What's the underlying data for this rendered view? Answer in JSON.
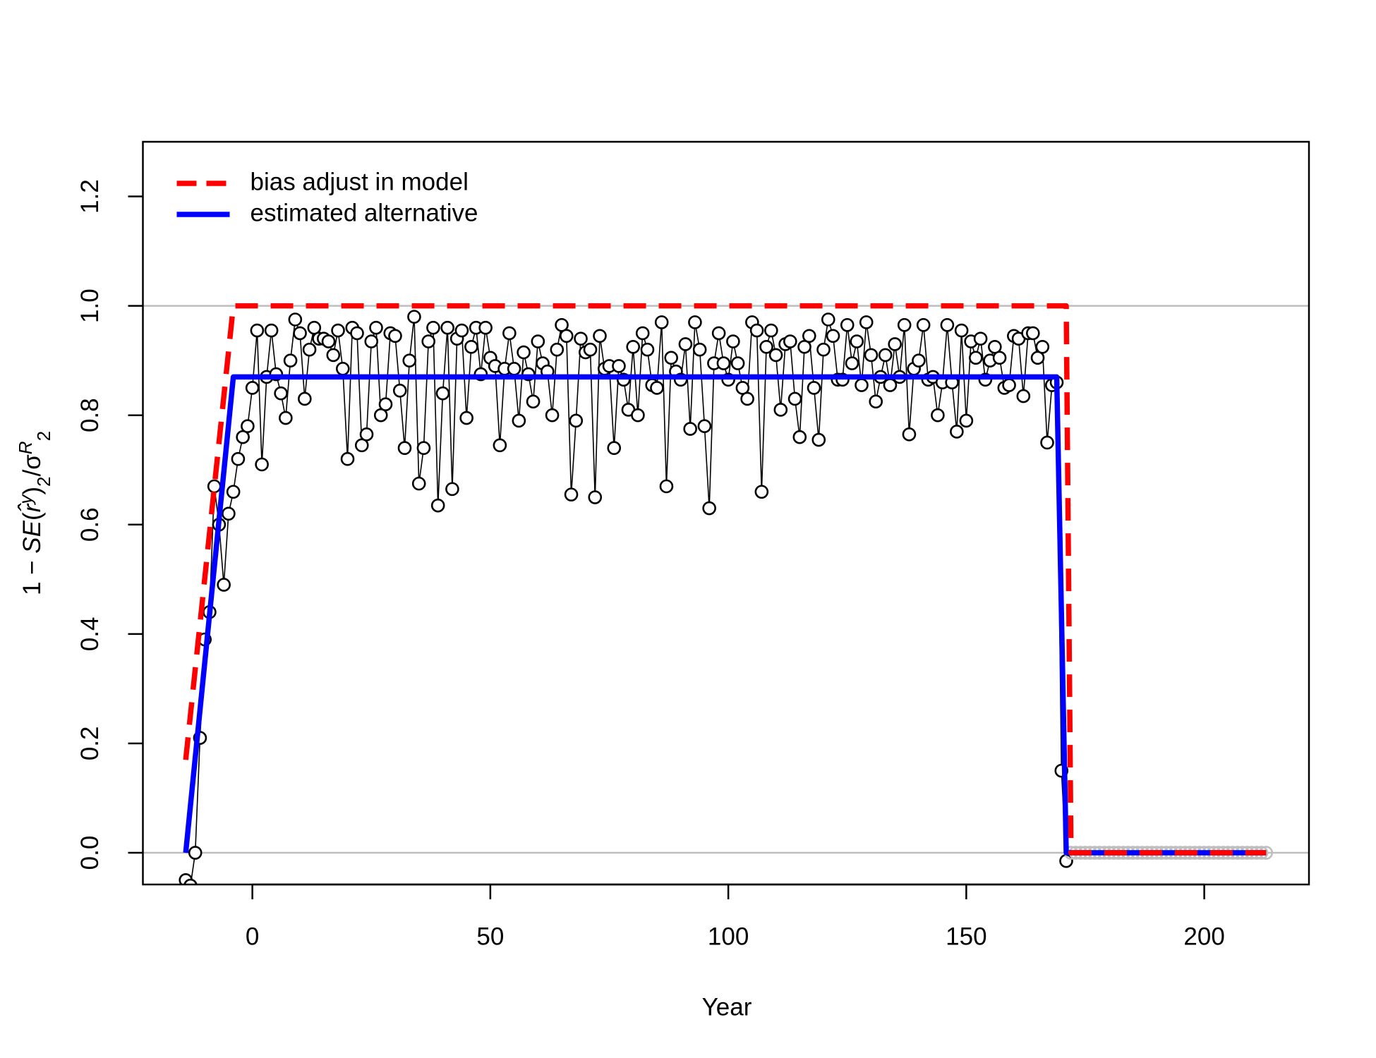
{
  "chart_data": {
    "type": "line",
    "xlabel": "Year",
    "ylabel_parts": [
      "1 − ",
      "SE",
      "(",
      "r̂",
      "y",
      ")",
      "2",
      "/",
      "σ",
      "R",
      "2"
    ],
    "xlim": [
      -23,
      222
    ],
    "ylim": [
      -0.058,
      1.3
    ],
    "xticks": [
      0,
      50,
      100,
      150,
      200
    ],
    "yticks": [
      {
        "value": 0,
        "label": "0.0"
      },
      {
        "value": 0.2,
        "label": "0.2"
      },
      {
        "value": 0.4,
        "label": "0.4"
      },
      {
        "value": 0.6,
        "label": "0.6"
      },
      {
        "value": 0.8,
        "label": "0.8"
      },
      {
        "value": 1,
        "label": "1.0"
      },
      {
        "value": 1.2,
        "label": "1.2"
      }
    ],
    "reference_lines": [
      0,
      1
    ],
    "reference_color": "#bebebe",
    "legend": "top-left",
    "series": [
      {
        "type": "scatter",
        "color": "#000000",
        "connect": true,
        "x": [
          -14,
          -13,
          -12,
          -11,
          -10,
          -9,
          -8,
          -7,
          -6,
          -5,
          -4,
          -3,
          -2,
          -1,
          0,
          1,
          2,
          3,
          4,
          5,
          6,
          7,
          8,
          9,
          10,
          11,
          12,
          13,
          14,
          15,
          16,
          17,
          18,
          19,
          20,
          21,
          22,
          23,
          24,
          25,
          26,
          27,
          28,
          29,
          30,
          31,
          32,
          33,
          34,
          35,
          36,
          37,
          38,
          39,
          40,
          41,
          42,
          43,
          44,
          45,
          46,
          47,
          48,
          49,
          50,
          51,
          52,
          53,
          54,
          55,
          56,
          57,
          58,
          59,
          60,
          61,
          62,
          63,
          64,
          65,
          66,
          67,
          68,
          69,
          70,
          71,
          72,
          73,
          74,
          75,
          76,
          77,
          78,
          79,
          80,
          81,
          82,
          83,
          84,
          85,
          86,
          87,
          88,
          89,
          90,
          91,
          92,
          93,
          94,
          95,
          96,
          97,
          98,
          99,
          100,
          101,
          102,
          103,
          104,
          105,
          106,
          107,
          108,
          109,
          110,
          111,
          112,
          113,
          114,
          115,
          116,
          117,
          118,
          119,
          120,
          121,
          122,
          123,
          124,
          125,
          126,
          127,
          128,
          129,
          130,
          131,
          132,
          133,
          134,
          135,
          136,
          137,
          138,
          139,
          140,
          141,
          142,
          143,
          144,
          145,
          146,
          147,
          148,
          149,
          150,
          151,
          152,
          153,
          154,
          155,
          156,
          157,
          158,
          159,
          160,
          161,
          162,
          163,
          164,
          165,
          166,
          167,
          168,
          169,
          170,
          171
        ],
        "values": [
          -0.05,
          -0.06,
          0.0,
          0.21,
          0.39,
          0.44,
          0.67,
          0.6,
          0.49,
          0.62,
          0.66,
          0.72,
          0.76,
          0.78,
          0.85,
          0.955,
          0.71,
          0.87,
          0.955,
          0.875,
          0.84,
          0.795,
          0.9,
          0.975,
          0.95,
          0.83,
          0.92,
          0.96,
          0.94,
          0.94,
          0.935,
          0.91,
          0.955,
          0.885,
          0.72,
          0.96,
          0.95,
          0.745,
          0.765,
          0.935,
          0.96,
          0.8,
          0.82,
          0.95,
          0.945,
          0.845,
          0.74,
          0.9,
          0.98,
          0.675,
          0.74,
          0.935,
          0.96,
          0.635,
          0.84,
          0.96,
          0.665,
          0.94,
          0.955,
          0.795,
          0.925,
          0.96,
          0.875,
          0.96,
          0.905,
          0.89,
          0.745,
          0.885,
          0.95,
          0.885,
          0.79,
          0.915,
          0.875,
          0.825,
          0.935,
          0.895,
          0.88,
          0.8,
          0.92,
          0.965,
          0.945,
          0.655,
          0.79,
          0.94,
          0.915,
          0.92,
          0.65,
          0.945,
          0.885,
          0.89,
          0.74,
          0.89,
          0.865,
          0.81,
          0.925,
          0.8,
          0.95,
          0.92,
          0.855,
          0.85,
          0.97,
          0.67,
          0.905,
          0.88,
          0.865,
          0.93,
          0.775,
          0.97,
          0.92,
          0.78,
          0.63,
          0.895,
          0.95,
          0.895,
          0.865,
          0.935,
          0.895,
          0.85,
          0.83,
          0.97,
          0.955,
          0.66,
          0.925,
          0.955,
          0.91,
          0.81,
          0.93,
          0.935,
          0.83,
          0.76,
          0.925,
          0.945,
          0.85,
          0.755,
          0.92,
          0.975,
          0.945,
          0.865,
          0.865,
          0.965,
          0.895,
          0.935,
          0.855,
          0.97,
          0.91,
          0.825,
          0.87,
          0.91,
          0.855,
          0.93,
          0.87,
          0.965,
          0.765,
          0.885,
          0.9,
          0.965,
          0.865,
          0.87,
          0.8,
          0.86,
          0.965,
          0.86,
          0.77,
          0.955,
          0.79,
          0.935,
          0.905,
          0.94,
          0.865,
          0.9,
          0.925,
          0.905,
          0.85,
          0.855,
          0.945,
          0.94,
          0.835,
          0.95,
          0.95,
          0.905,
          0.925,
          0.75,
          0.855,
          0.86,
          0.15,
          -0.015
        ]
      },
      {
        "type": "scatter",
        "color": "#bebebe",
        "x": [
          172,
          173,
          174,
          175,
          176,
          177,
          178,
          179,
          180,
          181,
          182,
          183,
          184,
          185,
          186,
          187,
          188,
          189,
          190,
          191,
          192,
          193,
          194,
          195,
          196,
          197,
          198,
          199,
          200,
          201,
          202,
          203,
          204,
          205,
          206,
          207,
          208,
          209,
          210,
          211,
          212,
          213
        ],
        "values": [
          0,
          0,
          0,
          0,
          0,
          0,
          0,
          0,
          0,
          0,
          0,
          0,
          0,
          0,
          0,
          0,
          0,
          0,
          0,
          0,
          0,
          0,
          0,
          0,
          0,
          0,
          0,
          0,
          0,
          0,
          0,
          0,
          0,
          0,
          0,
          0,
          0,
          0,
          0,
          0,
          0,
          0
        ]
      },
      {
        "type": "line",
        "name": "estimated alternative",
        "color": "#0000ff",
        "x": [
          -14,
          -4,
          169,
          171,
          213
        ],
        "values": [
          0,
          0.87,
          0.87,
          0,
          0
        ]
      },
      {
        "type": "line",
        "name": "bias adjust in model",
        "color": "#ff0000",
        "dashed": true,
        "x": [
          -14,
          -4,
          171,
          172,
          213
        ],
        "values": [
          0.17,
          1,
          1,
          0,
          0
        ]
      }
    ]
  }
}
